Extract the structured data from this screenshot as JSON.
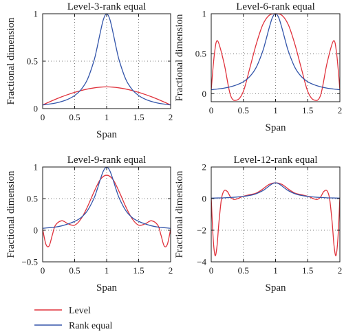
{
  "chart_data": [
    {
      "type": "line",
      "title": "Level-3-rank equal",
      "xlabel": "Span",
      "ylabel": "Fractional dimension",
      "xlim": [
        0,
        2
      ],
      "ylim": [
        0,
        1
      ],
      "xticks": [
        0,
        0.5,
        1,
        1.5,
        2
      ],
      "xtick_labels": [
        "0",
        "0.5",
        "1",
        "1.5",
        "2"
      ],
      "yticks": [
        0,
        0.5,
        1
      ],
      "ytick_labels": [
        "0",
        "0.5",
        "1"
      ],
      "grid": "dotted",
      "series": [
        {
          "name": "Level",
          "color": "#e0323c",
          "x": [
            0,
            0.1,
            0.2,
            0.3,
            0.4,
            0.5,
            0.6,
            0.7,
            0.8,
            0.9,
            1.0,
            1.1,
            1.2,
            1.3,
            1.4,
            1.5,
            1.6,
            1.7,
            1.8,
            1.9,
            2.0
          ],
          "y": [
            0.038,
            0.069,
            0.098,
            0.125,
            0.149,
            0.171,
            0.19,
            0.206,
            0.218,
            0.226,
            0.229,
            0.226,
            0.218,
            0.206,
            0.19,
            0.171,
            0.149,
            0.125,
            0.098,
            0.069,
            0.038
          ]
        },
        {
          "name": "Rank equal",
          "color": "#3355aa",
          "x": [
            0,
            0.1,
            0.2,
            0.3,
            0.4,
            0.5,
            0.6,
            0.7,
            0.8,
            0.85,
            0.9,
            0.95,
            1.0,
            1.05,
            1.1,
            1.15,
            1.2,
            1.3,
            1.4,
            1.5,
            1.6,
            1.7,
            1.8,
            1.9,
            2.0
          ],
          "y": [
            0.038,
            0.047,
            0.058,
            0.075,
            0.1,
            0.138,
            0.2,
            0.308,
            0.5,
            0.64,
            0.8,
            0.941,
            1.0,
            0.941,
            0.8,
            0.64,
            0.5,
            0.308,
            0.2,
            0.138,
            0.1,
            0.075,
            0.058,
            0.047,
            0.038
          ]
        }
      ]
    },
    {
      "type": "line",
      "title": "Level-6-rank equal",
      "xlabel": "Span",
      "ylabel": "Fractional dimension",
      "xlim": [
        0,
        2
      ],
      "ylim": [
        -0.1,
        1
      ],
      "xticks": [
        0,
        0.5,
        1,
        1.5,
        2
      ],
      "xtick_labels": [
        "0",
        "0.5",
        "1",
        "1.5",
        "2"
      ],
      "yticks": [
        0,
        0.5,
        1
      ],
      "ytick_labels": [
        "0",
        "0.5",
        "1"
      ],
      "grid": "dotted",
      "series": [
        {
          "name": "Level",
          "color": "#e0323c",
          "x": [
            0,
            0.05,
            0.1,
            0.2,
            0.3,
            0.4,
            0.5,
            0.6,
            0.7,
            0.8,
            0.9,
            1.0,
            1.1,
            1.2,
            1.3,
            1.4,
            1.5,
            1.6,
            1.7,
            1.8,
            1.9,
            1.95,
            2.0
          ],
          "y": [
            0.05,
            0.5,
            0.66,
            0.38,
            -0.02,
            -0.08,
            0.03,
            0.32,
            0.62,
            0.86,
            0.98,
            1.0,
            0.98,
            0.86,
            0.62,
            0.32,
            0.03,
            -0.08,
            -0.02,
            0.38,
            0.66,
            0.5,
            0.05
          ]
        },
        {
          "name": "Rank equal",
          "color": "#3355aa",
          "x": [
            0,
            0.1,
            0.2,
            0.3,
            0.4,
            0.5,
            0.6,
            0.7,
            0.8,
            0.85,
            0.9,
            0.95,
            1.0,
            1.05,
            1.1,
            1.15,
            1.2,
            1.3,
            1.4,
            1.5,
            1.6,
            1.7,
            1.8,
            1.9,
            2.0
          ],
          "y": [
            0.05,
            0.059,
            0.07,
            0.087,
            0.112,
            0.15,
            0.215,
            0.33,
            0.53,
            0.67,
            0.82,
            0.95,
            1.0,
            0.95,
            0.82,
            0.67,
            0.53,
            0.33,
            0.215,
            0.15,
            0.112,
            0.087,
            0.07,
            0.059,
            0.05
          ]
        }
      ]
    },
    {
      "type": "line",
      "title": "Level-9-rank equal",
      "xlabel": "Span",
      "ylabel": "Fractional dimension",
      "xlim": [
        0,
        2
      ],
      "ylim": [
        -0.5,
        1
      ],
      "xticks": [
        0,
        0.5,
        1,
        1.5,
        2
      ],
      "xtick_labels": [
        "0",
        "0.5",
        "1",
        "1.5",
        "2"
      ],
      "yticks": [
        -0.5,
        0,
        0.5,
        1
      ],
      "ytick_labels": [
        "−0.5",
        "0",
        "0.5",
        "1"
      ],
      "grid": "dotted",
      "series": [
        {
          "name": "Level",
          "color": "#e0323c",
          "x": [
            0,
            0.05,
            0.1,
            0.15,
            0.2,
            0.3,
            0.4,
            0.5,
            0.6,
            0.7,
            0.8,
            0.9,
            1.0,
            1.1,
            1.2,
            1.3,
            1.4,
            1.5,
            1.6,
            1.7,
            1.8,
            1.85,
            1.9,
            1.95,
            2.0
          ],
          "y": [
            0.02,
            -0.22,
            -0.25,
            -0.08,
            0.08,
            0.15,
            0.1,
            0.08,
            0.18,
            0.37,
            0.6,
            0.8,
            0.87,
            0.8,
            0.6,
            0.37,
            0.18,
            0.08,
            0.1,
            0.15,
            0.08,
            -0.08,
            -0.25,
            -0.22,
            0.02
          ]
        },
        {
          "name": "Rank equal",
          "color": "#3355aa",
          "x": [
            0,
            0.1,
            0.2,
            0.3,
            0.4,
            0.5,
            0.6,
            0.7,
            0.8,
            0.85,
            0.9,
            0.95,
            1.0,
            1.05,
            1.1,
            1.15,
            1.2,
            1.3,
            1.4,
            1.5,
            1.6,
            1.7,
            1.8,
            1.9,
            2.0
          ],
          "y": [
            0.03,
            0.04,
            0.05,
            0.07,
            0.1,
            0.14,
            0.2,
            0.31,
            0.5,
            0.64,
            0.8,
            0.94,
            1.0,
            0.94,
            0.8,
            0.64,
            0.5,
            0.31,
            0.2,
            0.14,
            0.1,
            0.07,
            0.05,
            0.04,
            0.03
          ]
        }
      ]
    },
    {
      "type": "line",
      "title": "Level-12-rank equal",
      "xlabel": "Span",
      "ylabel": "Fractional dimension",
      "xlim": [
        0,
        2
      ],
      "ylim": [
        -4,
        2
      ],
      "xticks": [
        0,
        0.5,
        1,
        1.5,
        2
      ],
      "xtick_labels": [
        "0",
        "0.5",
        "1",
        "1.5",
        "2"
      ],
      "yticks": [
        -4,
        -2,
        0,
        2
      ],
      "ytick_labels": [
        "−4",
        "−2",
        "0",
        "2"
      ],
      "grid": "dotted",
      "series": [
        {
          "name": "Level",
          "color": "#e0323c",
          "x": [
            0,
            0.03,
            0.06,
            0.09,
            0.12,
            0.16,
            0.2,
            0.25,
            0.3,
            0.35,
            0.4,
            0.5,
            0.6,
            0.7,
            0.8,
            0.9,
            1.0,
            1.1,
            1.2,
            1.3,
            1.4,
            1.5,
            1.6,
            1.65,
            1.7,
            1.75,
            1.8,
            1.84,
            1.88,
            1.91,
            1.94,
            1.97,
            2.0
          ],
          "y": [
            0.05,
            -2.5,
            -3.6,
            -3.0,
            -1.5,
            0.0,
            0.5,
            0.45,
            0.1,
            -0.05,
            -0.02,
            0.15,
            0.25,
            0.35,
            0.6,
            0.9,
            1.0,
            0.9,
            0.6,
            0.35,
            0.25,
            0.15,
            -0.02,
            -0.05,
            0.1,
            0.45,
            0.5,
            0.0,
            -1.5,
            -3.0,
            -3.6,
            -2.5,
            0.05
          ]
        },
        {
          "name": "Rank equal",
          "color": "#3355aa",
          "x": [
            0,
            0.1,
            0.2,
            0.3,
            0.4,
            0.5,
            0.6,
            0.7,
            0.8,
            0.85,
            0.9,
            0.95,
            1.0,
            1.05,
            1.1,
            1.15,
            1.2,
            1.3,
            1.4,
            1.5,
            1.6,
            1.7,
            1.8,
            1.9,
            2.0
          ],
          "y": [
            0.03,
            0.04,
            0.05,
            0.07,
            0.1,
            0.14,
            0.2,
            0.31,
            0.5,
            0.64,
            0.8,
            0.94,
            1.0,
            0.94,
            0.8,
            0.64,
            0.5,
            0.31,
            0.2,
            0.14,
            0.1,
            0.07,
            0.05,
            0.04,
            0.03
          ]
        }
      ]
    }
  ],
  "legend": {
    "placement": "bottom-left",
    "items": [
      {
        "label": "Level",
        "color": "#e0323c"
      },
      {
        "label": "Rank equal",
        "color": "#3355aa"
      }
    ]
  }
}
